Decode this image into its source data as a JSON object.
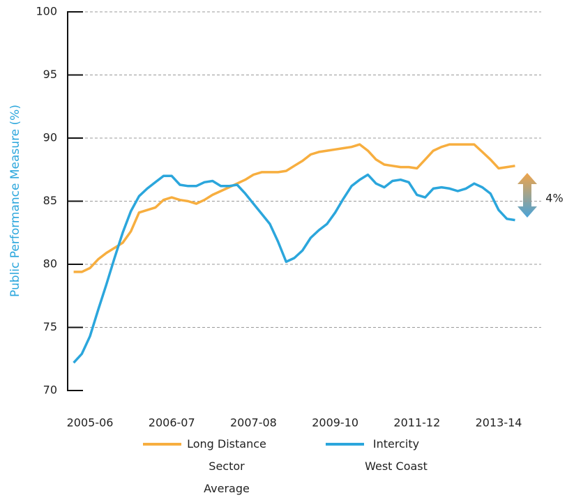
{
  "chart_data": {
    "type": "line",
    "y_label": "Public Performance Measure (%)",
    "categories": [
      null,
      null,
      "2005-06",
      null,
      null,
      null,
      null,
      null,
      null,
      null,
      null,
      null,
      "2006-07",
      null,
      null,
      null,
      null,
      null,
      null,
      null,
      null,
      null,
      "2007-08",
      null,
      null,
      null,
      null,
      null,
      null,
      null,
      null,
      null,
      "2009-10",
      null,
      null,
      null,
      null,
      null,
      null,
      null,
      null,
      null,
      "2011-12",
      null,
      null,
      null,
      null,
      null,
      null,
      null,
      null,
      null,
      "2013-14",
      null,
      null
    ],
    "series": [
      {
        "name": "Long Distance\nSector Average",
        "color": "#f7ae3f",
        "values": [
          79.4,
          79.4,
          79.7,
          80.4,
          80.9,
          81.3,
          81.7,
          82.6,
          84.1,
          84.3,
          84.5,
          85.1,
          85.3,
          85.1,
          85.0,
          84.8,
          85.1,
          85.5,
          85.8,
          86.1,
          86.4,
          86.7,
          87.1,
          87.3,
          87.3,
          87.3,
          87.4,
          87.8,
          88.2,
          88.7,
          88.9,
          89.0,
          89.1,
          89.2,
          89.3,
          89.5,
          89.0,
          88.3,
          87.9,
          87.8,
          87.7,
          87.7,
          87.6,
          88.3,
          89.0,
          89.3,
          89.5,
          89.5,
          89.5,
          89.5,
          88.9,
          88.3,
          87.6,
          87.7,
          87.8
        ]
      },
      {
        "name": "Intercity\nWest Coast",
        "color": "#2ba6dc",
        "values": [
          72.2,
          72.9,
          74.3,
          76.4,
          78.4,
          80.5,
          82.5,
          84.2,
          85.4,
          86.0,
          86.5,
          87.0,
          87.0,
          86.3,
          86.2,
          86.2,
          86.5,
          86.6,
          86.2,
          86.2,
          86.3,
          85.6,
          84.8,
          84.0,
          83.2,
          81.8,
          80.2,
          80.5,
          81.1,
          82.1,
          82.7,
          83.2,
          84.1,
          85.2,
          86.2,
          86.7,
          87.1,
          86.4,
          86.1,
          86.6,
          86.7,
          86.5,
          85.5,
          85.3,
          86.0,
          86.1,
          86.0,
          85.8,
          86.0,
          86.4,
          86.1,
          85.6,
          84.3,
          83.6,
          83.5
        ]
      }
    ],
    "annotation": "4%",
    "ylim": [
      70,
      100
    ],
    "yticks": [
      70,
      75,
      80,
      85,
      90,
      95,
      100
    ],
    "grid": true
  }
}
